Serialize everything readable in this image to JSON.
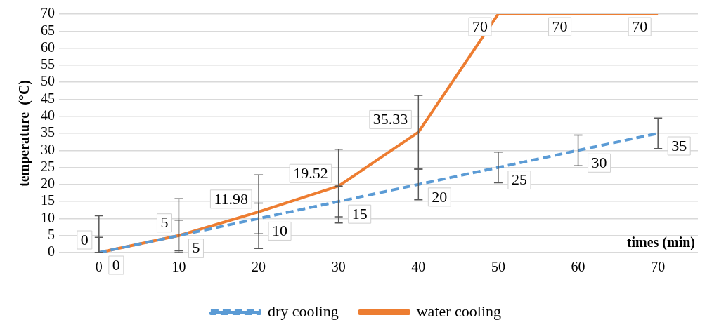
{
  "chart_data": {
    "type": "line",
    "xlabel": "times (min)",
    "ylabel": "temperature  (°C)",
    "categories": [
      "0",
      "10",
      "20",
      "30",
      "40",
      "50",
      "60",
      "70"
    ],
    "series": [
      {
        "name": "dry cooling",
        "color": "#5b9bd5",
        "line_style": "dashed",
        "values": [
          0,
          5,
          10,
          15,
          20,
          25,
          30,
          35
        ],
        "errors": [
          [
            0,
            4.5
          ],
          [
            0.5,
            9.5
          ],
          [
            5.5,
            14.5
          ],
          [
            10.5,
            19.5
          ],
          [
            15.5,
            24.5
          ],
          [
            20.5,
            29.5
          ],
          [
            25.5,
            34.5
          ],
          [
            30.5,
            39.5
          ]
        ]
      },
      {
        "name": "water cooling",
        "color": "#ed7d31",
        "line_style": "solid",
        "values": [
          0,
          5,
          11.98,
          19.52,
          35.33,
          70,
          70,
          70
        ],
        "errors": [
          [
            0,
            10.8
          ],
          [
            0,
            15.8
          ],
          [
            1.2,
            22.8
          ],
          [
            8.7,
            30.3
          ],
          [
            24.5,
            46.1
          ],
          null,
          null,
          null
        ]
      }
    ],
    "ylim": [
      0,
      70
    ],
    "yticks": [
      0,
      5,
      10,
      15,
      20,
      25,
      30,
      35,
      40,
      45,
      50,
      55,
      60,
      65,
      70
    ],
    "grid": "y",
    "legend": "bottom",
    "marker": "none",
    "data_labels": true
  }
}
